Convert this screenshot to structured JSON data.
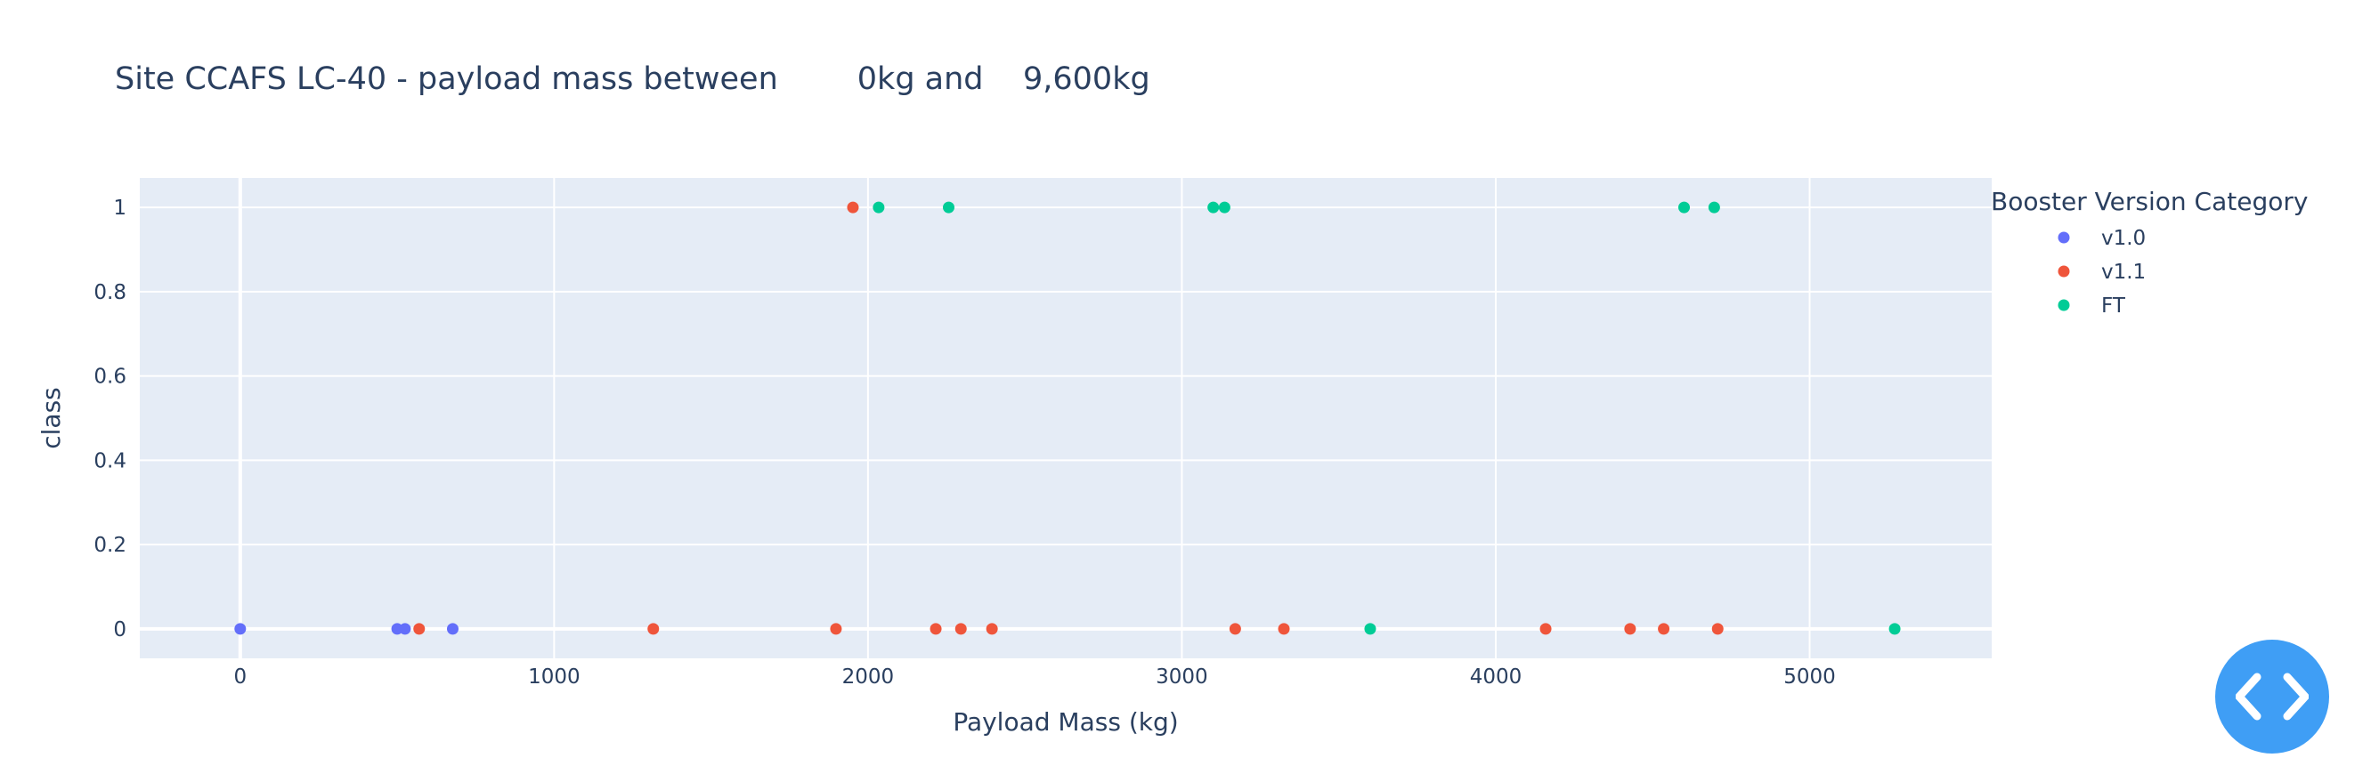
{
  "chart_data": {
    "type": "scatter",
    "title": "Site CCAFS LC-40 - payload mass between        0kg and    9,600kg",
    "xlabel": "Payload Mass (kg)",
    "ylabel": "class",
    "xlim": [
      -320,
      5580
    ],
    "ylim": [
      -0.07,
      1.07
    ],
    "x_ticks": [
      0,
      1000,
      2000,
      3000,
      4000,
      5000
    ],
    "y_ticks": [
      0,
      0.2,
      0.4,
      0.6,
      0.8,
      1
    ],
    "x_tick_labels": [
      "0",
      "1000",
      "2000",
      "3000",
      "4000",
      "5000"
    ],
    "y_tick_labels": [
      "0",
      "0.2",
      "0.4",
      "0.6",
      "0.8",
      "1"
    ],
    "grid": true,
    "legend": {
      "title": "Booster Version Category",
      "position": "right"
    },
    "series": [
      {
        "name": "v1.0",
        "color": "#636efa",
        "points": [
          {
            "x": 0,
            "y": 0
          },
          {
            "x": 500,
            "y": 0
          },
          {
            "x": 525,
            "y": 0
          },
          {
            "x": 677,
            "y": 0
          }
        ]
      },
      {
        "name": "v1.1",
        "color": "#ef553b",
        "points": [
          {
            "x": 570,
            "y": 0
          },
          {
            "x": 1316,
            "y": 0
          },
          {
            "x": 1898,
            "y": 0
          },
          {
            "x": 1952,
            "y": 1
          },
          {
            "x": 2216,
            "y": 0
          },
          {
            "x": 2296,
            "y": 0
          },
          {
            "x": 2395,
            "y": 0
          },
          {
            "x": 3170,
            "y": 0
          },
          {
            "x": 3325,
            "y": 0
          },
          {
            "x": 4159,
            "y": 0
          },
          {
            "x": 4428,
            "y": 0
          },
          {
            "x": 4535,
            "y": 0
          },
          {
            "x": 4707,
            "y": 0
          }
        ]
      },
      {
        "name": "FT",
        "color": "#00cc96",
        "points": [
          {
            "x": 2034,
            "y": 1
          },
          {
            "x": 2257,
            "y": 1
          },
          {
            "x": 3100,
            "y": 1
          },
          {
            "x": 3136,
            "y": 1
          },
          {
            "x": 3600,
            "y": 0
          },
          {
            "x": 4600,
            "y": 1
          },
          {
            "x": 4696,
            "y": 1
          },
          {
            "x": 5271,
            "y": 0
          }
        ]
      }
    ]
  },
  "code_button": {
    "icon": "code-icon",
    "color": "#3f9ef5"
  }
}
